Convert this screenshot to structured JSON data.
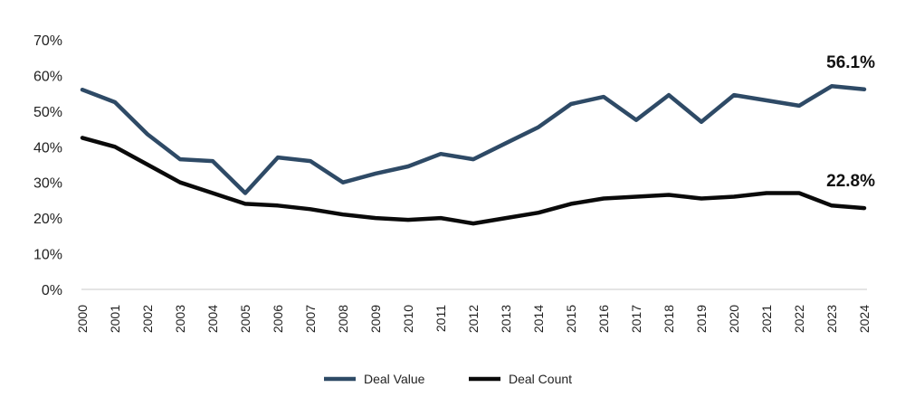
{
  "chart_data": {
    "type": "line",
    "title": "",
    "xlabel": "",
    "ylabel": "",
    "ylim": [
      0,
      70
    ],
    "ytick_values": [
      0,
      10,
      20,
      30,
      40,
      50,
      60,
      70
    ],
    "ytick_labels": [
      "0%",
      "10%",
      "20%",
      "30%",
      "40%",
      "50%",
      "60%",
      "70%"
    ],
    "x": [
      "2000",
      "2001",
      "2002",
      "2003",
      "2004",
      "2005",
      "2006",
      "2007",
      "2008",
      "2009",
      "2010",
      "2011",
      "2012",
      "2013",
      "2014",
      "2015",
      "2016",
      "2017",
      "2018",
      "2019",
      "2020",
      "2021",
      "2022",
      "2023",
      "2024"
    ],
    "grid": false,
    "legend_position": "bottom",
    "series": [
      {
        "name": "Deal Value",
        "color": "#2e4a66",
        "values": [
          56.0,
          52.5,
          43.5,
          36.5,
          36.0,
          27.0,
          37.0,
          36.0,
          30.0,
          32.5,
          34.5,
          38.0,
          36.5,
          41.0,
          45.5,
          52.0,
          54.0,
          47.5,
          54.5,
          47.0,
          54.5,
          53.0,
          51.5,
          57.0,
          56.1
        ],
        "end_label": "56.1%"
      },
      {
        "name": "Deal Count",
        "color": "#0a0a0a",
        "values": [
          42.5,
          40.0,
          35.0,
          30.0,
          27.0,
          24.0,
          23.5,
          22.5,
          21.0,
          20.0,
          19.5,
          20.0,
          18.5,
          20.0,
          21.5,
          24.0,
          25.5,
          26.0,
          26.5,
          25.5,
          26.0,
          27.0,
          27.0,
          23.5,
          22.8
        ],
        "end_label": "22.8%"
      }
    ]
  }
}
